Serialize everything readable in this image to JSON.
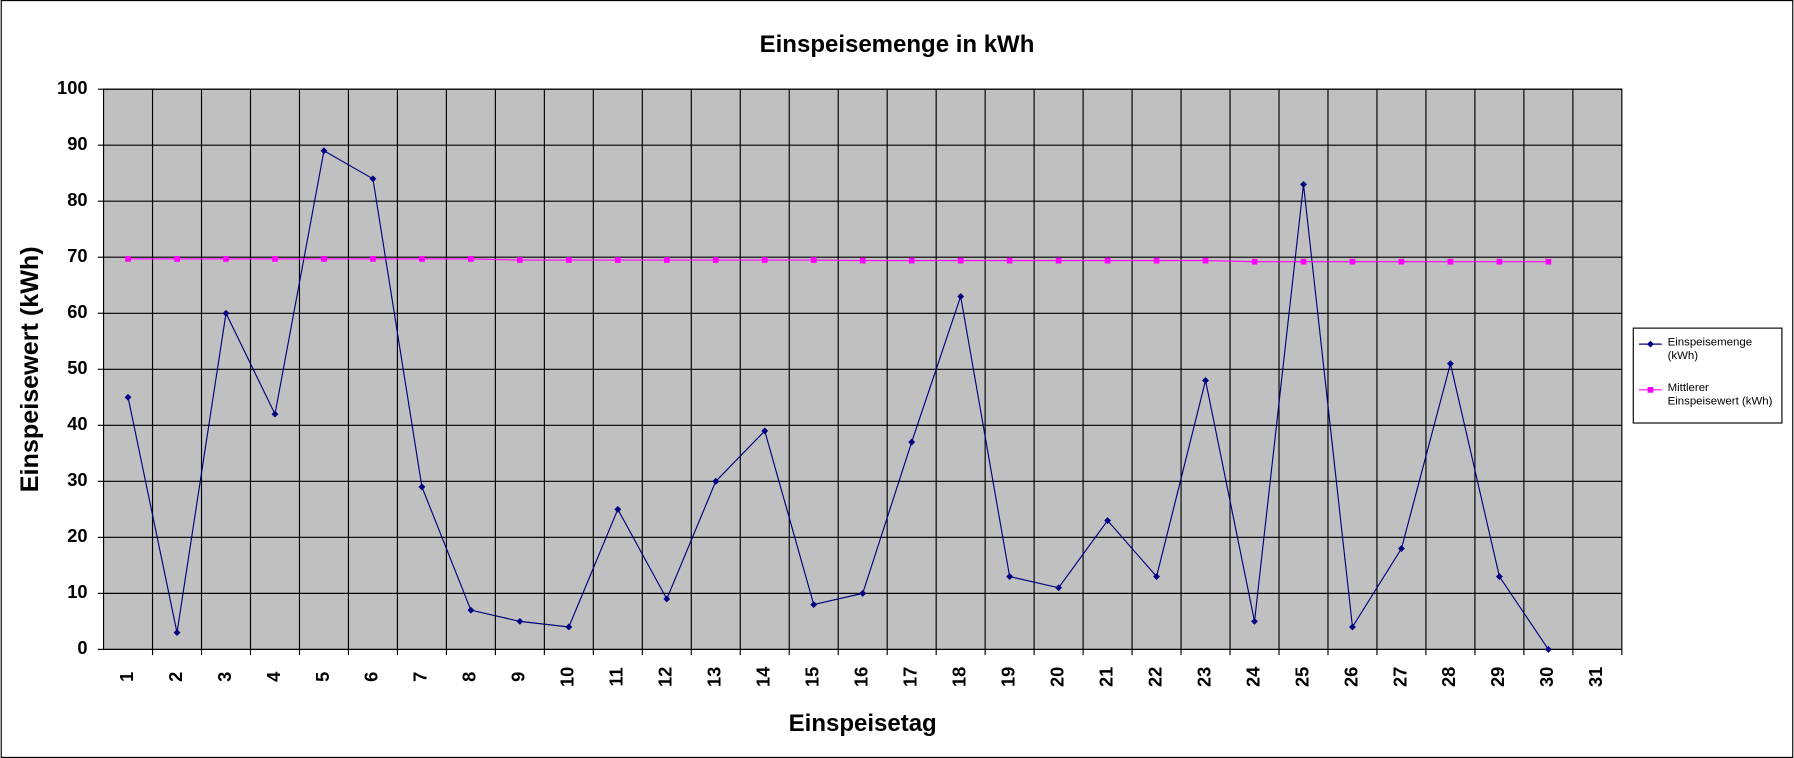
{
  "chart_data": {
    "type": "line",
    "title": "Einspeisemenge in kWh",
    "x_label": "Einspeisetag",
    "y_label": "Einspeisewert  (kWh)",
    "categories": [
      "1",
      "2",
      "3",
      "4",
      "5",
      "6",
      "7",
      "8",
      "9",
      "10",
      "11",
      "12",
      "13",
      "14",
      "15",
      "16",
      "17",
      "18",
      "19",
      "20",
      "21",
      "22",
      "23",
      "24",
      "25",
      "26",
      "27",
      "28",
      "29",
      "30",
      "31"
    ],
    "series": [
      {
        "name": "Einspeisemenge (kWh)",
        "color": "#000080",
        "marker": "diamond",
        "values": [
          45,
          3,
          60,
          42,
          89,
          84,
          29,
          7,
          5,
          4,
          25,
          9,
          30,
          39,
          8,
          10,
          37,
          63,
          13,
          11,
          23,
          13,
          48,
          5,
          83,
          4,
          18,
          51,
          13,
          0,
          null
        ]
      },
      {
        "name": "Mittlerer Einspeisewert (kWh)",
        "color": "#ff00ff",
        "marker": "square",
        "values": [
          69.7,
          69.7,
          69.7,
          69.7,
          69.7,
          69.7,
          69.7,
          69.7,
          69.5,
          69.5,
          69.5,
          69.5,
          69.5,
          69.5,
          69.5,
          69.4,
          69.4,
          69.4,
          69.4,
          69.4,
          69.4,
          69.4,
          69.4,
          69.2,
          69.2,
          69.2,
          69.2,
          69.2,
          69.2,
          69.2,
          null
        ]
      }
    ],
    "ylim": [
      0,
      100
    ],
    "yticks": [
      0,
      10,
      20,
      30,
      40,
      50,
      60,
      70,
      80,
      90,
      100
    ],
    "grid": true,
    "legend": "right"
  }
}
